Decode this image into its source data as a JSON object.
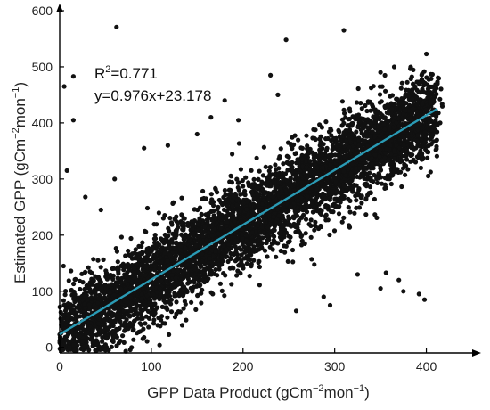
{
  "chart_data": {
    "type": "scatter",
    "title": "",
    "xlabel": {
      "main": "GPP Data Product (gCm",
      "sup1": "−2",
      "mid": "mon",
      "sup2": "−1",
      "end": ")"
    },
    "ylabel": {
      "main": "Estimated GPP (gCm",
      "sup1": "−2",
      "mid": "mon",
      "sup2": "−1",
      "end": ")"
    },
    "xlim": [
      0,
      450
    ],
    "ylim": [
      -10,
      600
    ],
    "x_ticks": [
      "0",
      "100",
      "200",
      "300",
      "400"
    ],
    "y_ticks": [
      "0",
      "100",
      "200",
      "300",
      "400",
      "500",
      "600"
    ],
    "grid": false,
    "legend": "none",
    "annotations": {
      "r2_prefix": "R",
      "r2_sup": "2",
      "r2_value": "=0.771",
      "equation": "y=0.976x+23.178"
    },
    "fit_line": {
      "slope": 0.976,
      "intercept": 23.178,
      "x_range": [
        0,
        412
      ]
    },
    "point_color": "#111111",
    "line_color": "#2a9bb5",
    "points_note_values": [
      [
        62,
        571
      ],
      [
        247,
        548
      ],
      [
        310,
        565
      ],
      [
        400,
        523
      ],
      [
        15,
        483
      ],
      [
        5,
        465
      ],
      [
        230,
        485
      ],
      [
        15,
        405
      ],
      [
        8,
        315
      ],
      [
        370,
        120
      ],
      [
        375,
        100
      ],
      [
        325,
        130
      ],
      [
        356,
        133
      ],
      [
        350,
        105
      ],
      [
        392,
        95
      ],
      [
        398,
        85
      ],
      [
        288,
        90
      ],
      [
        295,
        75
      ],
      [
        100,
        60
      ],
      [
        80,
        40
      ],
      [
        60,
        20
      ],
      [
        50,
        -5
      ],
      [
        72,
        -7
      ],
      [
        258,
        65
      ],
      [
        122,
        105
      ],
      [
        140,
        125
      ],
      [
        36,
        30
      ],
      [
        22,
        20
      ],
      [
        180,
        440
      ],
      [
        165,
        410
      ],
      [
        60,
        300
      ],
      [
        28,
        268
      ],
      [
        45,
        245
      ],
      [
        92,
        355
      ],
      [
        118,
        360
      ],
      [
        150,
        380
      ],
      [
        195,
        405
      ],
      [
        238,
        450
      ],
      [
        350,
        490
      ],
      [
        365,
        500
      ],
      [
        410,
        418
      ],
      [
        415,
        400
      ]
    ]
  }
}
